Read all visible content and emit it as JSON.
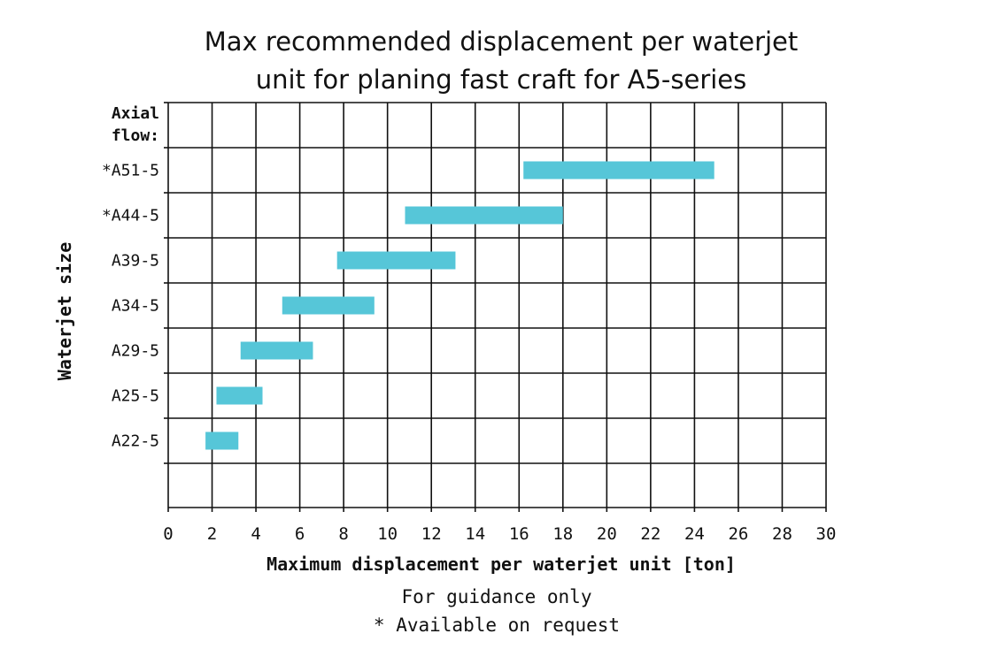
{
  "chart_data": {
    "type": "bar",
    "orientation": "horizontal-range",
    "title_lines": [
      "Max recommended displacement per waterjet",
      "unit for planing fast craft for A5-series"
    ],
    "category_header": [
      "Axial",
      "flow:"
    ],
    "categories": [
      "*A51-5",
      "*A44-5",
      "A39-5",
      "A34-5",
      "A29-5",
      "A25-5",
      "A22-5"
    ],
    "ranges": [
      [
        16.2,
        24.9
      ],
      [
        10.8,
        18.0
      ],
      [
        7.7,
        13.1
      ],
      [
        5.2,
        9.4
      ],
      [
        3.3,
        6.6
      ],
      [
        2.2,
        4.3
      ],
      [
        1.7,
        3.2
      ]
    ],
    "xlabel": "Maximum displacement per waterjet unit [ton]",
    "ylabel": "Waterjet size",
    "xlim": [
      0,
      30
    ],
    "xticks": [
      0,
      2,
      4,
      6,
      8,
      10,
      12,
      14,
      16,
      18,
      20,
      22,
      24,
      26,
      28,
      30
    ],
    "grid": true,
    "bar_color": "#56c6d8",
    "notes": [
      "For guidance only",
      "* Available on request"
    ]
  }
}
